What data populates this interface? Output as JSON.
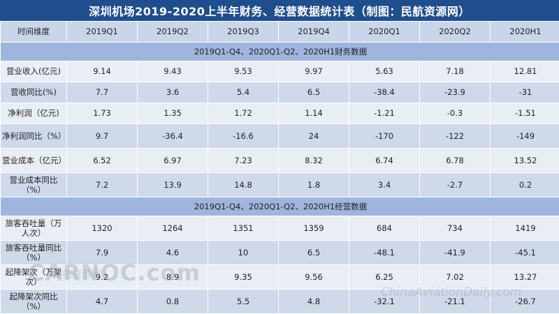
{
  "title": "深圳机场2019-2020上半年财务、经营数据统计表（制图：民航资源网）",
  "header": [
    "时间维度",
    "2019Q1",
    "2019Q2",
    "2019Q3",
    "2019Q4",
    "2020Q1",
    "2020Q2",
    "2020H1"
  ],
  "section_financial": "2019Q1-Q4、2020Q1-Q2、2020H1财务数据",
  "financial_rows": [
    {
      "label": "营业收入(亿元)",
      "values": [
        "9.14",
        "9.43",
        "9.53",
        "9.97",
        "5.63",
        "7.18",
        "12.81"
      ]
    },
    {
      "label": "营收同比(%)",
      "values": [
        "7.7",
        "3.6",
        "5.4",
        "6.5",
        "-38.4",
        "-23.9",
        "-31"
      ]
    },
    {
      "label": "净利润（亿元)",
      "values": [
        "1.73",
        "1.35",
        "1.72",
        "1.14",
        "-1.21",
        "-0.3",
        "-1.51"
      ]
    },
    {
      "label": "净利润同比（%）",
      "values": [
        "9.7",
        "-36.4",
        "-16.6",
        "24",
        "-170",
        "-122",
        "-149"
      ]
    },
    {
      "label": "营业成本（亿元）",
      "values": [
        "6.52",
        "6.97",
        "7.23",
        "8.32",
        "6.74",
        "6.78",
        "13.52"
      ]
    },
    {
      "label": "营业成本同比（%）",
      "values": [
        "7.2",
        "13.9",
        "14.8",
        "1.8",
        "3.4",
        "-2.7",
        "0.2"
      ]
    }
  ],
  "section_operating": "2019Q1-Q4、2020Q1-Q2、2020H1经营数据",
  "operating_rows": [
    {
      "label": "旅客吞吐量（万人次）",
      "values": [
        "1320",
        "1264",
        "1351",
        "1359",
        "684",
        "734",
        "1419"
      ]
    },
    {
      "label": "旅客吞吐量同比（%）",
      "values": [
        "7.9",
        "4.6",
        "10",
        "6.5",
        "-48.1",
        "-41.9",
        "-45.1"
      ]
    },
    {
      "label": "起降架次（万架次）",
      "values": [
        "9.2",
        "8.9",
        "9.35",
        "9.56",
        "6.25",
        "7.02",
        "13.27"
      ]
    },
    {
      "label": "起降架次同比（%）",
      "values": [
        "4.7",
        "0.8",
        "5.5",
        "4.8",
        "-32.1",
        "-21.1",
        "-26.7"
      ]
    }
  ],
  "watermark_left": "CARNOC.com",
  "watermark_left_cn": "民航资源网",
  "watermark_right": "ChinaAviationDaily.com"
}
